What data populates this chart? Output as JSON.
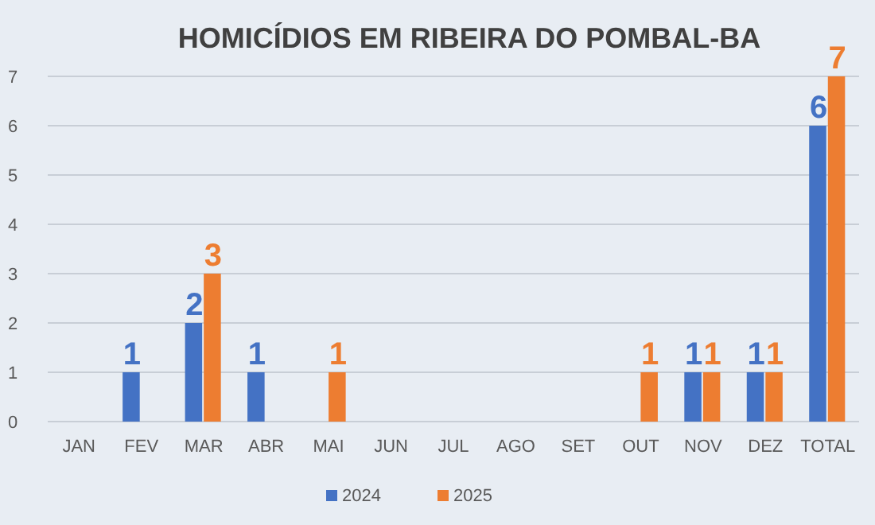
{
  "chart_data": {
    "type": "bar",
    "title": "HOMICÍDIOS EM RIBEIRA DO POMBAL-BA",
    "categories": [
      "JAN",
      "FEV",
      "MAR",
      "ABR",
      "MAI",
      "JUN",
      "JUL",
      "AGO",
      "SET",
      "OUT",
      "NOV",
      "DEZ",
      "TOTAL"
    ],
    "series": [
      {
        "name": "2024",
        "color": "#4472c4",
        "values": [
          0,
          1,
          2,
          1,
          0,
          0,
          0,
          0,
          0,
          0,
          1,
          1,
          6
        ],
        "value_labels": [
          null,
          "1",
          "2",
          "1",
          null,
          null,
          null,
          null,
          null,
          null,
          "1",
          "1",
          "6"
        ]
      },
      {
        "name": "2025",
        "color": "#ed7d31",
        "values": [
          0,
          0,
          3,
          0,
          1,
          0,
          0,
          0,
          0,
          1,
          1,
          1,
          7
        ],
        "value_labels": [
          null,
          null,
          "3",
          null,
          "1",
          null,
          null,
          null,
          null,
          "1",
          "1",
          "1",
          "7"
        ]
      }
    ],
    "ylim": [
      0,
      7
    ],
    "yticks": [
      0,
      1,
      2,
      3,
      4,
      5,
      6,
      7
    ],
    "grid": "y",
    "legend": "bottom"
  }
}
